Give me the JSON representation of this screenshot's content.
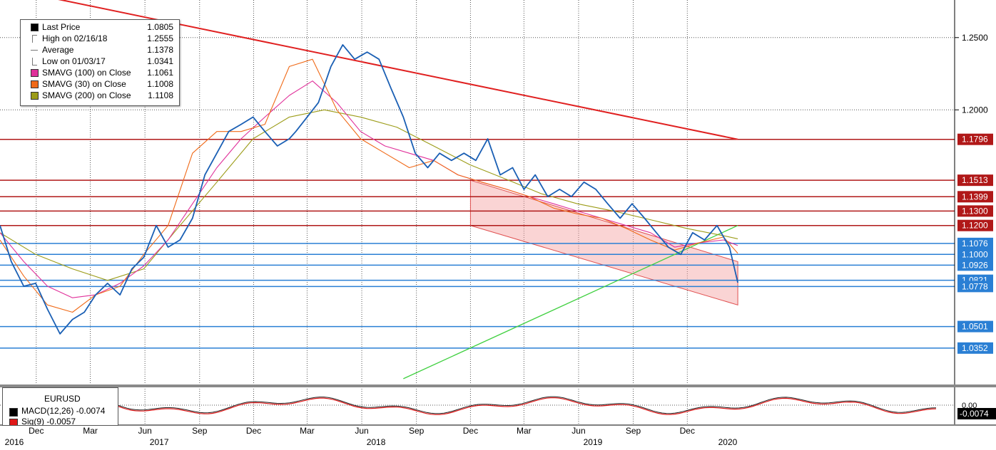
{
  "legend": {
    "items": [
      {
        "name": "Last Price",
        "value": "1.0805",
        "color": "#000000",
        "icon": "square"
      },
      {
        "name": "High on 02/16/18",
        "value": "1.2555",
        "color": "#777777",
        "icon": "high-marker"
      },
      {
        "name": "Average",
        "value": "1.1378",
        "color": "#777777",
        "icon": "average-marker"
      },
      {
        "name": "Low on 01/03/17",
        "value": "1.0341",
        "color": "#777777",
        "icon": "low-marker"
      },
      {
        "name": "SMAVG (100)  on Close",
        "value": "1.1061",
        "color": "#e0309a",
        "icon": "square"
      },
      {
        "name": "SMAVG (30)  on Close",
        "value": "1.1008",
        "color": "#f06a18",
        "icon": "square"
      },
      {
        "name": "SMAVG (200)  on Close",
        "value": "1.1108",
        "color": "#9c9c18",
        "icon": "square"
      }
    ]
  },
  "macd_panel": {
    "title": "EURUSD",
    "items": [
      {
        "name": "MACD(12,26)",
        "value": "-0.0074",
        "color": "#000000"
      },
      {
        "name": "Sig(9)",
        "value": "-0.0057",
        "color": "#e01818"
      }
    ],
    "axis_label": "0.00",
    "last_value_tag": "-0.0074"
  },
  "chart_data": {
    "type": "line",
    "title": "",
    "xlabel": "",
    "ylabel": "",
    "x_range": [
      "2015-10-01",
      "2020-02-24"
    ],
    "ylim": [
      1.01,
      1.276
    ],
    "y_ticks": [
      1.25,
      1.2
    ],
    "y_tick_labels": [
      "1.2500",
      "1.2000"
    ],
    "x_ticks": [
      {
        "date": "2015-12-01",
        "label": "Dec"
      },
      {
        "date": "2016-03-01",
        "label": "Mar"
      },
      {
        "date": "2016-06-01",
        "label": "Jun"
      },
      {
        "date": "2016-09-01",
        "label": "Sep"
      },
      {
        "date": "2016-12-01",
        "label": "Dec"
      },
      {
        "date": "2017-03-01",
        "label": "Mar"
      },
      {
        "date": "2017-06-01",
        "label": "Jun"
      },
      {
        "date": "2017-09-01",
        "label": "Sep"
      },
      {
        "date": "2017-12-01",
        "label": "Dec"
      },
      {
        "date": "2018-03-01",
        "label": "Mar"
      },
      {
        "date": "2018-06-01",
        "label": "Jun"
      },
      {
        "date": "2018-09-01",
        "label": "Sep"
      },
      {
        "date": "2018-12-01",
        "label": "Dec"
      }
    ],
    "year_labels": [
      {
        "date": "2015-10-01",
        "label": "2016"
      },
      {
        "date": "2016-06-01",
        "label": "2017"
      },
      {
        "date": "2017-06-01",
        "label": "2018"
      },
      {
        "date": "2018-06-01",
        "label": "2019"
      },
      {
        "date": "2019-01-14",
        "label": "2020"
      }
    ],
    "grid": true,
    "legend_position": "top-left",
    "series": [
      {
        "name": "Last Price",
        "color": "#1a5fb4",
        "x": [
          "2015-10-01",
          "2015-10-20",
          "2015-11-10",
          "2015-11-30",
          "2015-12-20",
          "2016-01-10",
          "2016-01-31",
          "2016-02-20",
          "2016-03-10",
          "2016-03-30",
          "2016-04-20",
          "2016-05-10",
          "2016-05-30",
          "2016-06-20",
          "2016-07-10",
          "2016-07-30",
          "2016-08-20",
          "2016-09-10",
          "2016-09-30",
          "2016-10-20",
          "2016-11-10",
          "2016-11-30",
          "2016-12-20",
          "2017-01-10",
          "2017-01-30",
          "2017-02-10",
          "2017-03-01",
          "2017-03-20",
          "2017-04-10",
          "2017-04-30",
          "2017-05-20",
          "2017-06-10",
          "2017-06-30",
          "2017-07-20",
          "2017-08-10",
          "2017-08-30",
          "2017-09-20",
          "2017-10-10",
          "2017-10-30",
          "2017-11-20",
          "2017-12-10",
          "2017-12-30",
          "2018-01-20",
          "2018-02-10",
          "2018-03-01",
          "2018-03-20",
          "2018-04-10",
          "2018-04-30",
          "2018-05-20",
          "2018-06-10",
          "2018-06-30",
          "2018-07-20",
          "2018-08-10",
          "2018-08-30",
          "2018-09-20",
          "2018-10-10",
          "2018-10-30",
          "2018-11-20",
          "2018-12-10",
          "2018-12-30",
          "2019-01-20",
          "2019-02-10",
          "2019-02-24"
        ],
        "y": [
          1.12,
          1.095,
          1.078,
          1.08,
          1.062,
          1.045,
          1.055,
          1.06,
          1.072,
          1.08,
          1.072,
          1.09,
          1.098,
          1.12,
          1.105,
          1.11,
          1.125,
          1.155,
          1.17,
          1.185,
          1.19,
          1.195,
          1.185,
          1.175,
          1.18,
          1.185,
          1.195,
          1.205,
          1.23,
          1.245,
          1.235,
          1.24,
          1.235,
          1.215,
          1.195,
          1.17,
          1.16,
          1.17,
          1.165,
          1.17,
          1.165,
          1.18,
          1.155,
          1.16,
          1.145,
          1.155,
          1.14,
          1.145,
          1.14,
          1.15,
          1.145,
          1.135,
          1.125,
          1.135,
          1.125,
          1.115,
          1.105,
          1.1,
          1.115,
          1.11,
          1.12,
          1.105,
          1.0805
        ]
      },
      {
        "name": "SMAVG (100)  on Close",
        "color": "#e0309a",
        "x": [
          "2015-10-01",
          "2015-11-10",
          "2015-12-20",
          "2016-01-31",
          "2016-03-10",
          "2016-04-20",
          "2016-05-30",
          "2016-07-10",
          "2016-08-20",
          "2016-09-30",
          "2016-11-10",
          "2016-12-20",
          "2017-01-30",
          "2017-03-10",
          "2017-04-20",
          "2017-05-30",
          "2017-07-10",
          "2017-08-20",
          "2017-09-30",
          "2017-11-10",
          "2017-12-20",
          "2018-01-31",
          "2018-03-10",
          "2018-04-20",
          "2018-05-30",
          "2018-07-10",
          "2018-08-20",
          "2018-09-30",
          "2018-11-10",
          "2018-12-20",
          "2019-01-31",
          "2019-02-24"
        ],
        "y": [
          1.115,
          1.095,
          1.078,
          1.07,
          1.072,
          1.08,
          1.092,
          1.11,
          1.135,
          1.16,
          1.18,
          1.195,
          1.21,
          1.22,
          1.205,
          1.185,
          1.175,
          1.17,
          1.165,
          1.155,
          1.15,
          1.145,
          1.14,
          1.135,
          1.13,
          1.125,
          1.12,
          1.115,
          1.105,
          1.108,
          1.11,
          1.1061
        ]
      },
      {
        "name": "SMAVG (30)  on Close",
        "color": "#f06a18",
        "x": [
          "2015-10-01",
          "2015-11-10",
          "2015-12-20",
          "2016-01-31",
          "2016-03-10",
          "2016-04-20",
          "2016-05-30",
          "2016-07-10",
          "2016-08-20",
          "2016-09-30",
          "2016-11-10",
          "2016-12-20",
          "2017-01-30",
          "2017-03-10",
          "2017-04-20",
          "2017-05-30",
          "2017-07-10",
          "2017-08-20",
          "2017-09-30",
          "2017-11-10",
          "2017-12-20",
          "2018-01-31",
          "2018-03-10",
          "2018-04-20",
          "2018-05-30",
          "2018-07-10",
          "2018-08-20",
          "2018-09-30",
          "2018-11-10",
          "2018-12-20",
          "2019-01-31",
          "2019-02-24"
        ],
        "y": [
          1.11,
          1.085,
          1.065,
          1.06,
          1.072,
          1.078,
          1.1,
          1.12,
          1.17,
          1.185,
          1.185,
          1.19,
          1.23,
          1.235,
          1.2,
          1.18,
          1.17,
          1.16,
          1.165,
          1.155,
          1.15,
          1.145,
          1.14,
          1.132,
          1.128,
          1.125,
          1.118,
          1.11,
          1.103,
          1.108,
          1.112,
          1.1008
        ]
      },
      {
        "name": "SMAVG (200)  on Close",
        "color": "#9c9c18",
        "x": [
          "2015-10-01",
          "2015-11-30",
          "2016-01-31",
          "2016-03-30",
          "2016-05-30",
          "2016-07-30",
          "2016-09-30",
          "2016-11-30",
          "2017-01-30",
          "2017-03-30",
          "2017-05-30",
          "2017-07-30",
          "2017-09-30",
          "2017-11-30",
          "2018-01-30",
          "2018-03-30",
          "2018-05-30",
          "2018-07-30",
          "2018-09-30",
          "2018-11-30",
          "2019-01-30",
          "2019-02-24"
        ],
        "y": [
          1.115,
          1.1,
          1.09,
          1.082,
          1.09,
          1.12,
          1.15,
          1.18,
          1.195,
          1.2,
          1.195,
          1.188,
          1.175,
          1.162,
          1.152,
          1.142,
          1.135,
          1.13,
          1.124,
          1.118,
          1.113,
          1.1108
        ]
      }
    ],
    "horizontal_levels": [
      {
        "value": 1.1796,
        "label": "1.1796",
        "color": "#b01818"
      },
      {
        "value": 1.1513,
        "label": "1.1513",
        "color": "#b01818"
      },
      {
        "value": 1.1399,
        "label": "1.1399",
        "color": "#b01818"
      },
      {
        "value": 1.13,
        "label": "1.1300",
        "color": "#b01818"
      },
      {
        "value": 1.12,
        "label": "1.1200",
        "color": "#b01818"
      },
      {
        "value": 1.1076,
        "label": "1.1076",
        "color": "#2a7fd4"
      },
      {
        "value": 1.1,
        "label": "1.1000",
        "color": "#2a7fd4"
      },
      {
        "value": 1.0926,
        "label": "1.0926",
        "color": "#2a7fd4"
      },
      {
        "value": 1.0821,
        "label": "1.0821",
        "color": "#2a7fd4"
      },
      {
        "value": 1.0778,
        "label": "1.0778",
        "color": "#2a7fd4"
      },
      {
        "value": 1.0501,
        "label": "1.0501",
        "color": "#2a7fd4"
      },
      {
        "value": 1.0352,
        "label": "1.0352",
        "color": "#2a7fd4"
      }
    ],
    "trendlines": [
      {
        "name": "downtrend",
        "color": "#e02020",
        "points": [
          [
            "2015-12-20",
            1.278
          ],
          [
            "2019-02-24",
            1.1796
          ]
        ]
      },
      {
        "name": "uptrend",
        "color": "#40d040",
        "points": [
          [
            "2017-08-10",
            1.014
          ],
          [
            "2019-02-24",
            1.12
          ]
        ]
      }
    ],
    "channel": {
      "color": "#f4a0a0",
      "upper": [
        [
          "2017-12-01",
          1.1513
        ],
        [
          "2019-02-24",
          1.095
        ]
      ],
      "lower": [
        [
          "2017-12-01",
          1.12
        ],
        [
          "2019-02-24",
          1.065
        ]
      ]
    }
  }
}
